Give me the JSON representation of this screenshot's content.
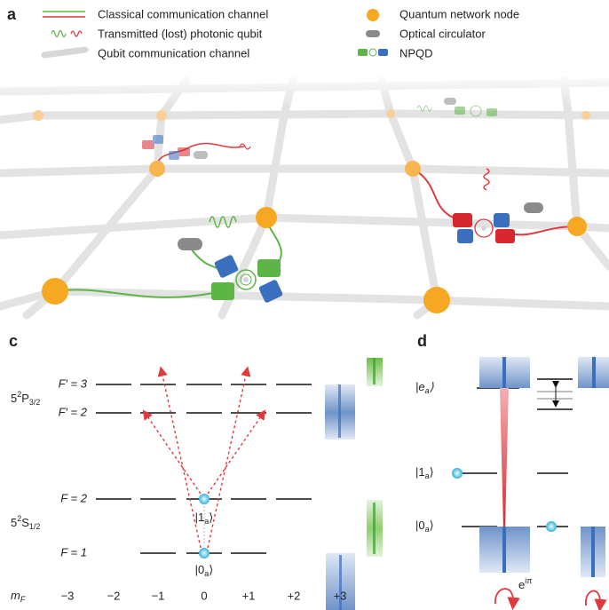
{
  "panel_labels": [
    "a",
    "c",
    "d"
  ],
  "legend": {
    "left": [
      "Classical communication channel",
      "Transmitted (lost) photonic qubit",
      "Qubit communication channel"
    ],
    "right": [
      "Quantum network node",
      "Optical circulator",
      "NPQD"
    ]
  },
  "panel_c": {
    "levels": [
      "F′ = 3",
      "F′ = 2",
      "F = 2",
      "F = 1"
    ],
    "terms": [
      {
        "base": "5",
        "sup": "2",
        "letter": "P",
        "sub": "3/2"
      },
      {
        "base": "5",
        "sup": "2",
        "letter": "S",
        "sub": "1/2"
      }
    ],
    "states": [
      {
        "pre": "|1",
        "sub": "a",
        "post": "⟩"
      },
      {
        "pre": "|0",
        "sub": "a",
        "post": "⟩"
      }
    ],
    "mf_axis": {
      "base": "m",
      "sub": "F"
    },
    "mf_values": [
      "−3",
      "−2",
      "−1",
      "0",
      "+1",
      "+2",
      "+3"
    ]
  },
  "panel_d": {
    "states": [
      {
        "pre": "|e",
        "sub": "a",
        "post": "⟩"
      },
      {
        "pre": "|1",
        "sub": "a",
        "post": "⟩"
      },
      {
        "pre": "|0",
        "sub": "a",
        "post": "⟩"
      }
    ],
    "phase": {
      "base": "e",
      "sup": "iπ"
    }
  }
}
